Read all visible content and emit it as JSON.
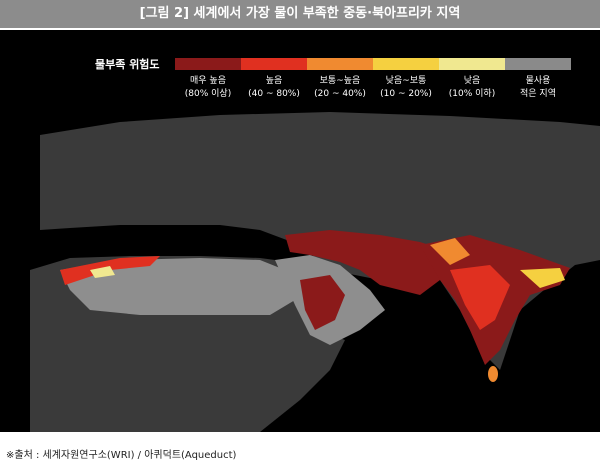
{
  "header": {
    "title": "[그림 2] 세계에서 가장 물이 부족한 중동·북아프리카 지역"
  },
  "legend": {
    "title": "물부족 위험도",
    "items": [
      {
        "line1": "매우 높음",
        "line2": "(80% 이상)"
      },
      {
        "line1": "높음",
        "line2": "(40 ~ 80%)"
      },
      {
        "line1": "보통~높음",
        "line2": "(20 ~ 40%)"
      },
      {
        "line1": "낮음~보통",
        "line2": "(10 ~ 20%)"
      },
      {
        "line1": "낮음",
        "line2": "(10% 이하)"
      },
      {
        "line1": "물사용",
        "line2": "적은 지역"
      }
    ]
  },
  "source": "※출처 : 세계자원연구소(WRI) / 아퀴덕트(Aqueduct)"
}
